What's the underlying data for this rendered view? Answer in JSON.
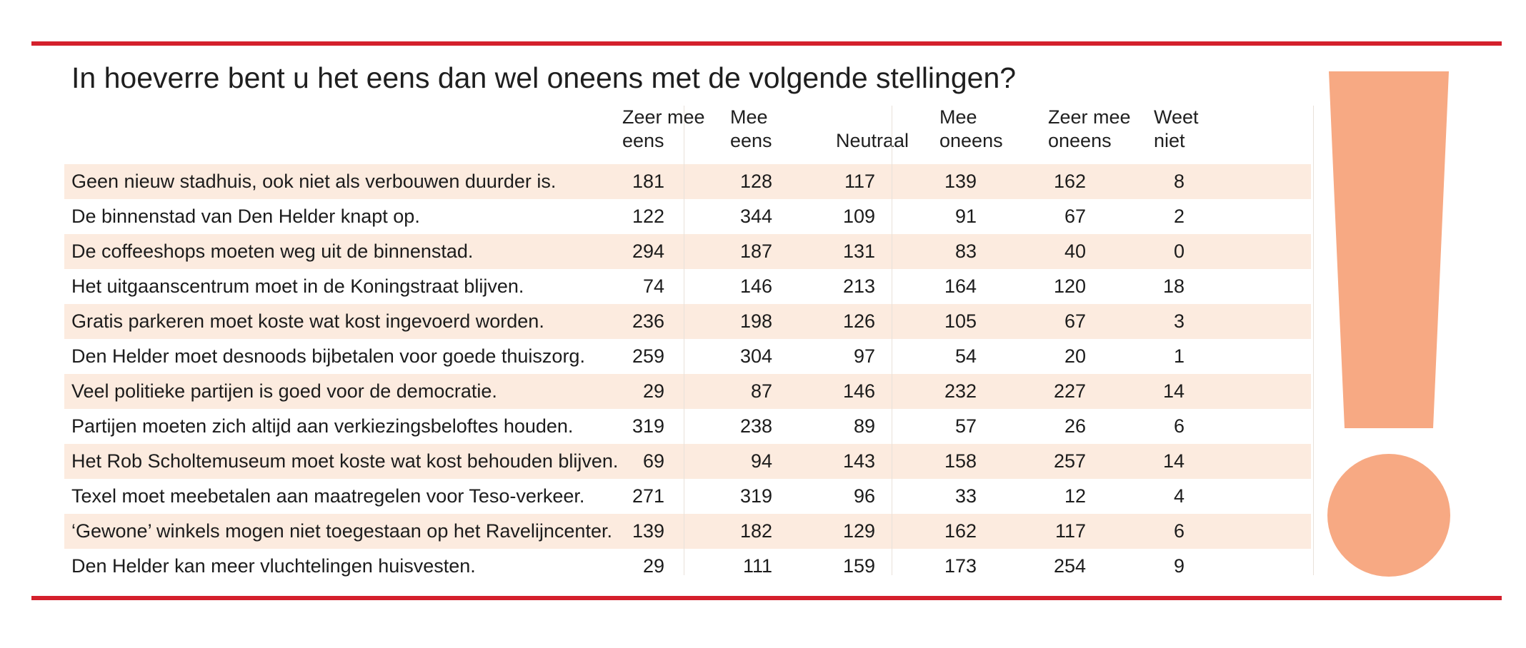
{
  "chart_data": {
    "type": "table",
    "title": "In hoeverre bent u het eens dan wel oneens met de volgende stellingen?",
    "columns": [
      {
        "line1": "Zeer mee",
        "line2": "eens"
      },
      {
        "line1": "Mee",
        "line2": "eens"
      },
      {
        "line1": "",
        "line2": "Neutraal"
      },
      {
        "line1": "Mee",
        "line2": "oneens"
      },
      {
        "line1": "Zeer mee",
        "line2": "oneens"
      },
      {
        "line1": "Weet",
        "line2": "niet"
      }
    ],
    "rows": [
      {
        "statement": "Geen nieuw stadhuis, ook niet als verbouwen duurder is.",
        "values": [
          181,
          128,
          117,
          139,
          162,
          8
        ]
      },
      {
        "statement": "De binnenstad van Den Helder knapt op.",
        "values": [
          122,
          344,
          109,
          91,
          67,
          2
        ]
      },
      {
        "statement": "De coffeeshops moeten weg uit de binnenstad.",
        "values": [
          294,
          187,
          131,
          83,
          40,
          0
        ]
      },
      {
        "statement": "Het uitgaanscentrum moet in de Koningstraat blijven.",
        "values": [
          74,
          146,
          213,
          164,
          120,
          18
        ]
      },
      {
        "statement": "Gratis parkeren moet koste wat kost ingevoerd worden.",
        "values": [
          236,
          198,
          126,
          105,
          67,
          3
        ]
      },
      {
        "statement": "Den Helder moet desnoods bijbetalen voor goede thuiszorg.",
        "values": [
          259,
          304,
          97,
          54,
          20,
          1
        ]
      },
      {
        "statement": "Veel politieke partijen is goed voor de democratie.",
        "values": [
          29,
          87,
          146,
          232,
          227,
          14
        ]
      },
      {
        "statement": "Partijen moeten zich altijd aan verkiezingsbeloftes houden.",
        "values": [
          319,
          238,
          89,
          57,
          26,
          6
        ]
      },
      {
        "statement": "Het Rob Scholtemuseum moet koste wat kost behouden blijven.",
        "values": [
          69,
          94,
          143,
          158,
          257,
          14
        ]
      },
      {
        "statement": "Texel moet meebetalen aan maatregelen voor Teso-verkeer.",
        "values": [
          271,
          319,
          96,
          33,
          12,
          4
        ]
      },
      {
        "statement": "‘Gewone’ winkels mogen niet toegestaan op het Ravelijncenter.",
        "values": [
          139,
          182,
          129,
          162,
          117,
          6
        ]
      },
      {
        "statement": "Den Helder kan meer vluchtelingen huisvesten.",
        "values": [
          29,
          111,
          159,
          173,
          254,
          9
        ]
      }
    ]
  },
  "colors": {
    "rule": "#d4202c",
    "row_shade": "#fcebdf",
    "exclamation": "#f7a983"
  },
  "decoration": {
    "exclamation_icon": "exclamation-mark-icon"
  }
}
